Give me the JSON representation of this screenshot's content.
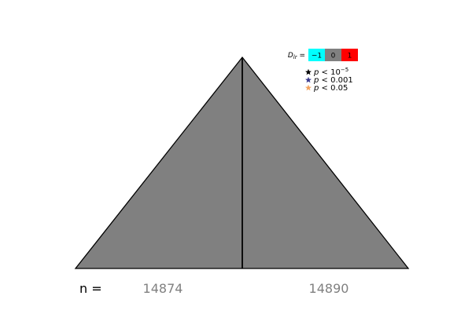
{
  "chart_data": {
    "type": "other",
    "description_free": true,
    "n_label": "n =",
    "panels": [
      {
        "name": "left",
        "n": "14874"
      },
      {
        "name": "right",
        "n": "14890"
      }
    ],
    "fill_color": "#808080",
    "edge_color": "#000000",
    "n_value_color": "#808080",
    "colorbar": {
      "label_prefix": "D",
      "label_subscript": "lr",
      "label_suffix": " =",
      "entries": [
        {
          "label": "−1",
          "value": -1,
          "color": "#00ffff"
        },
        {
          "label": "0",
          "value": 0,
          "color": "#808080"
        },
        {
          "label": "1",
          "value": 1,
          "color": "#ff0000"
        }
      ]
    },
    "significance_legend": [
      {
        "symbol": "star-icon",
        "color": "#000000",
        "label_prefix": "p < 10",
        "label_sup": "−5"
      },
      {
        "symbol": "star-icon",
        "color": "#3b3b8f",
        "label_prefix": "p < 0.001",
        "label_sup": ""
      },
      {
        "symbol": "star-icon",
        "color": "#f4a460",
        "label_prefix": "p < 0.05",
        "label_sup": ""
      }
    ]
  }
}
